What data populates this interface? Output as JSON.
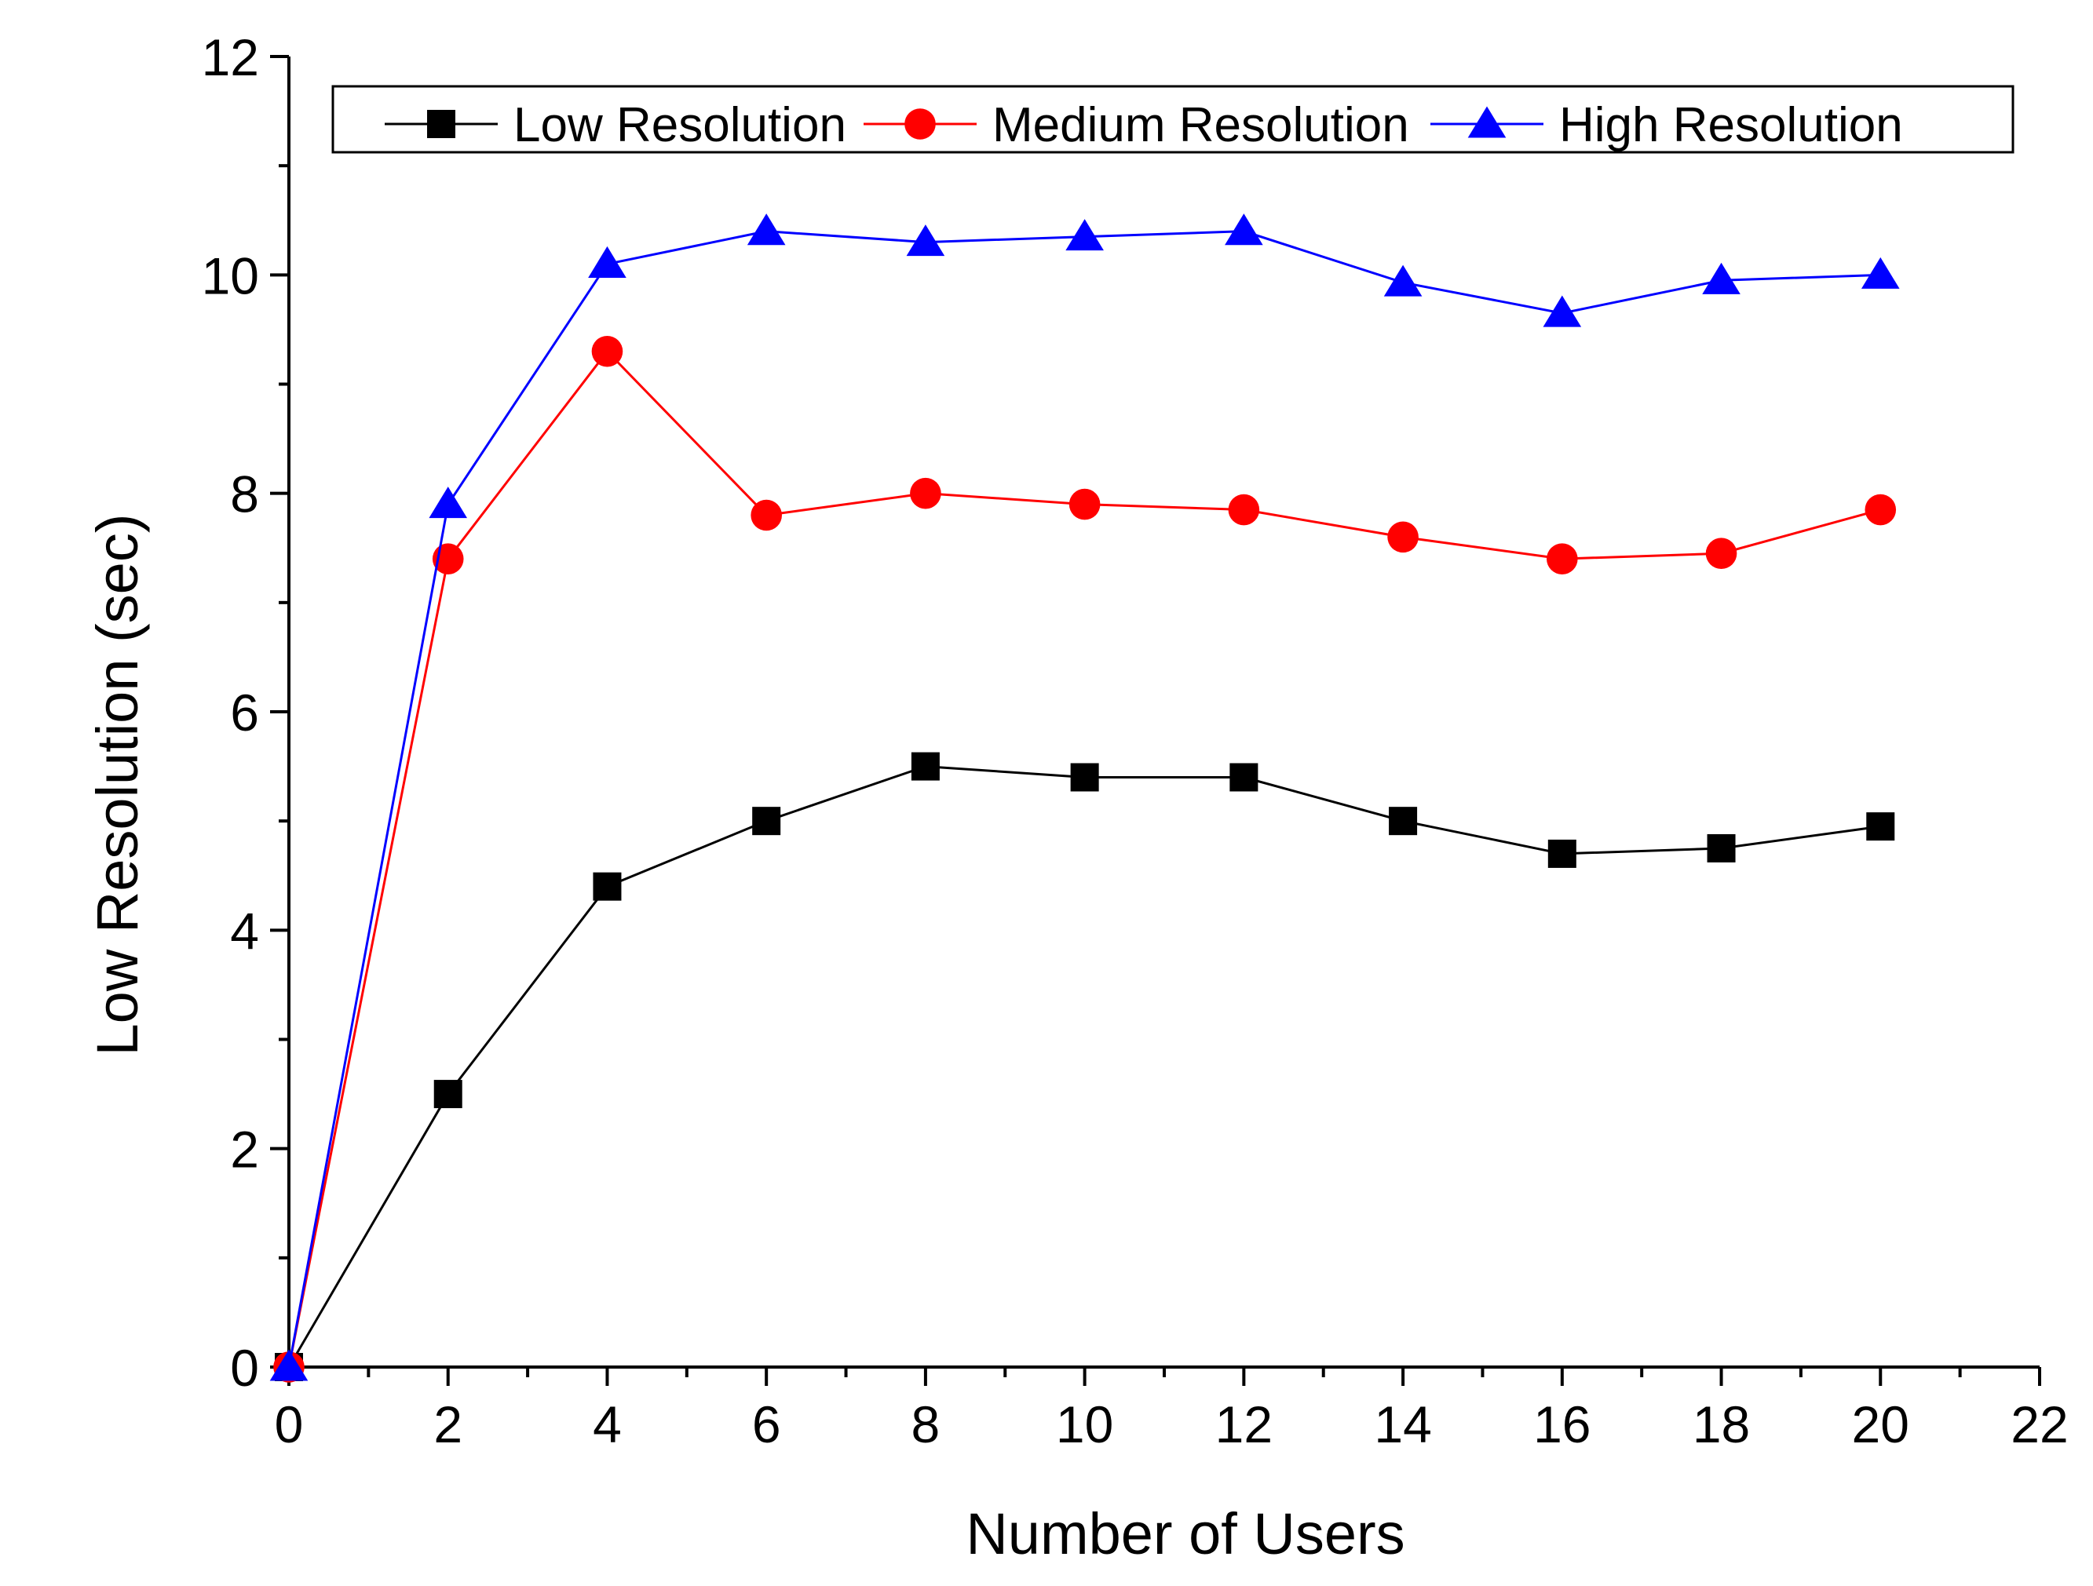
{
  "chart_data": {
    "type": "line",
    "title": "",
    "xlabel": "Number of Users",
    "ylabel": "Low Resolution (sec)",
    "xlim": [
      0,
      22
    ],
    "ylim": [
      0,
      12
    ],
    "x_ticks": [
      0,
      2,
      4,
      6,
      8,
      10,
      12,
      14,
      16,
      18,
      20,
      22
    ],
    "y_ticks": [
      0,
      2,
      4,
      6,
      8,
      10,
      12
    ],
    "x_tick_labels": [
      "0",
      "2",
      "4",
      "6",
      "8",
      "10",
      "12",
      "14",
      "16",
      "18",
      "20",
      "22"
    ],
    "y_tick_labels": [
      "0",
      "2",
      "4",
      "6",
      "8",
      "10",
      "12"
    ],
    "grid": false,
    "legend_position": "top",
    "x": [
      0,
      2,
      4,
      6,
      8,
      10,
      12,
      14,
      16,
      18,
      20
    ],
    "series": [
      {
        "name": "Low Resolution",
        "color": "#000000",
        "marker": "square",
        "values": [
          0,
          2.5,
          4.4,
          5.0,
          5.5,
          5.4,
          5.4,
          5.0,
          4.7,
          4.75,
          4.95
        ]
      },
      {
        "name": "Medium Resolution",
        "color": "#ff0000",
        "marker": "circle",
        "values": [
          0,
          7.4,
          9.3,
          7.8,
          8.0,
          7.9,
          7.85,
          7.6,
          7.4,
          7.45,
          7.85
        ]
      },
      {
        "name": "High Resolution",
        "color": "#0000ff",
        "marker": "triangle",
        "values": [
          0,
          7.9,
          10.1,
          10.4,
          10.3,
          10.35,
          10.4,
          9.93,
          9.65,
          9.95,
          10.0
        ]
      }
    ]
  }
}
